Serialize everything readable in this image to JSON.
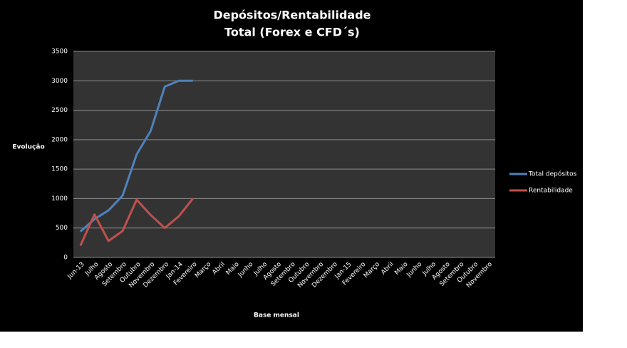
{
  "chart_data": {
    "type": "line",
    "title": "Depósitos/Rentabilidade",
    "subtitle": "Total (Forex e CFD´s)",
    "y_label": "Evolução",
    "x_label": "Base mensal",
    "categories": [
      "Jun-13",
      "Julho",
      "Agosto",
      "Setembro",
      "Outubro",
      "Novembro",
      "Dezembro",
      "Jan-14",
      "Fevereiro",
      "Março",
      "Abril",
      "Maio",
      "Junho",
      "Julho",
      "Agosto",
      "Setembro",
      "Outubro",
      "Novembro",
      "Dezembro",
      "Jan-15",
      "Fevereiro",
      "Março",
      "Abril",
      "Maio",
      "Junho",
      "Julho",
      "Agosto",
      "Setembro",
      "Outubro",
      "Novembro"
    ],
    "series": [
      {
        "name": "Total depósitos",
        "color": "#4f81bd",
        "values": [
          440,
          650,
          800,
          1050,
          1750,
          2150,
          2900,
          3000,
          3000,
          null,
          null,
          null,
          null,
          null,
          null,
          null,
          null,
          null,
          null,
          null,
          null,
          null,
          null,
          null,
          null,
          null,
          null,
          null,
          null,
          null
        ]
      },
      {
        "name": "Rentabilidade",
        "color": "#c0504d",
        "values": [
          200,
          730,
          280,
          450,
          980,
          720,
          500,
          700,
          1000,
          null,
          null,
          null,
          null,
          null,
          null,
          null,
          null,
          null,
          null,
          null,
          null,
          null,
          null,
          null,
          null,
          null,
          null,
          null,
          null,
          null
        ]
      }
    ],
    "ylim": [
      0,
      3500
    ],
    "yticks": [
      0,
      500,
      1000,
      1500,
      2000,
      2500,
      3000,
      3500
    ],
    "grid": true,
    "legend": "right"
  }
}
